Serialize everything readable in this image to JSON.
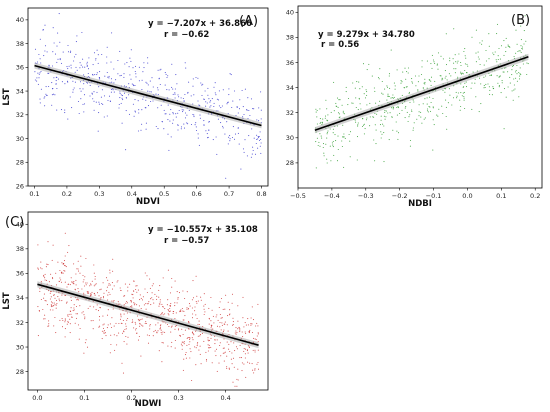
{
  "chart_data": [
    {
      "type": "scatter",
      "panel_label": "(A)",
      "xlabel": "NDVI",
      "ylabel": "LST",
      "xlim": [
        0.08,
        0.82
      ],
      "ylim": [
        26,
        41
      ],
      "xticks": [
        "0.1",
        "0.2",
        "0.3",
        "0.4",
        "0.5",
        "0.6",
        "0.7",
        "0.8"
      ],
      "yticks": [
        "26",
        "28",
        "30",
        "32",
        "34",
        "36",
        "38",
        "40"
      ],
      "point_color": "#3333cc",
      "x_range": [
        0.1,
        0.8
      ],
      "noise_sd": 1.5,
      "point_count": 600,
      "regression": {
        "slope": -7.207,
        "intercept": 36.866,
        "r": -0.62
      },
      "equation_text": "y = −7.207x + 36.866",
      "r_text": "r = −0.62"
    },
    {
      "type": "scatter",
      "panel_label": "(B)",
      "xlabel": "NDBI",
      "ylabel": "",
      "xlim": [
        -0.5,
        0.22
      ],
      "ylim": [
        26,
        40.5
      ],
      "xticks": [
        "−0.5",
        "−0.4",
        "−0.3",
        "−0.2",
        "−0.1",
        "0.0",
        "0.1",
        "0.2"
      ],
      "yticks": [
        "28",
        "30",
        "32",
        "34",
        "36",
        "38",
        "40"
      ],
      "point_color": "#2a9a2a",
      "x_range": [
        -0.45,
        0.18
      ],
      "noise_sd": 1.6,
      "point_count": 600,
      "regression": {
        "slope": 9.279,
        "intercept": 34.78,
        "r": 0.56
      },
      "equation_text": "y = 9.279x + 34.780",
      "r_text": "r = 0.56"
    },
    {
      "type": "scatter",
      "panel_label": "(C)",
      "xlabel": "NDWI",
      "ylabel": "LST",
      "xlim": [
        -0.02,
        0.49
      ],
      "ylim": [
        26.5,
        41
      ],
      "xticks": [
        "0.0",
        "0.1",
        "0.2",
        "0.3",
        "0.4"
      ],
      "yticks": [
        "28",
        "30",
        "32",
        "34",
        "36",
        "38",
        "40"
      ],
      "point_color": "#cc3333",
      "x_range": [
        0.0,
        0.47
      ],
      "noise_sd": 1.6,
      "point_count": 900,
      "regression": {
        "slope": -10.557,
        "intercept": 35.108,
        "r": -0.57
      },
      "equation_text": "y = −10.557x + 35.108",
      "r_text": "r = −0.57"
    }
  ]
}
